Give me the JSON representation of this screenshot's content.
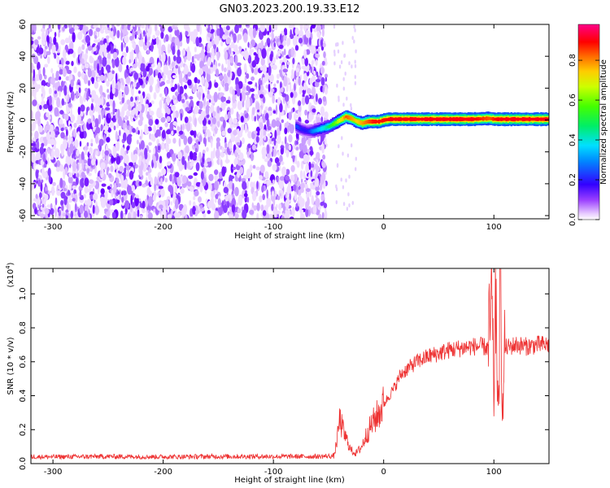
{
  "title": "GN03.2023.200.19.33.E12",
  "chart_data": [
    {
      "type": "heatmap",
      "xlabel": "Height of straight line (km)",
      "ylabel": "Frequency (Hz)",
      "xlim": [
        -320,
        150
      ],
      "ylim": [
        -62,
        60
      ],
      "x_ticks": [
        -300,
        -200,
        -100,
        0,
        100
      ],
      "y_ticks": [
        -60,
        -40,
        -20,
        0,
        20,
        40,
        60
      ],
      "colorbar": {
        "label": "Normalized spectral amplitude",
        "range": [
          0,
          0.98
        ],
        "ticks": [
          "0.0",
          "0.2",
          "0.4",
          "0.6",
          "0.8"
        ],
        "colormap": "rainbow (white-purple-blue-cyan-green-yellow-orange-red-magenta)"
      },
      "noise_region": {
        "x_range": [
          -320,
          -52
        ],
        "freq_range": [
          -62,
          60
        ],
        "amplitude_range": [
          0.0,
          0.18
        ]
      },
      "signal_trace": {
        "x": [
          -80,
          -75,
          -70,
          -65,
          -60,
          -55,
          -50,
          -45,
          -40,
          -35,
          -30,
          -25,
          -20,
          -15,
          -10,
          -5,
          0,
          5,
          10,
          20,
          40,
          60,
          80,
          95,
          100,
          105,
          120,
          150
        ],
        "freq": [
          -4,
          -6,
          -7,
          -7,
          -6,
          -5,
          -4,
          -2,
          0,
          2,
          1,
          -1,
          -2,
          -1,
          -1,
          -1,
          0,
          0.5,
          0.5,
          0.5,
          0.5,
          0.5,
          0.5,
          1,
          0.5,
          0.5,
          0.5,
          0.5
        ],
        "amplitude": [
          0.25,
          0.2,
          0.2,
          0.3,
          0.35,
          0.4,
          0.5,
          0.6,
          0.7,
          0.85,
          0.8,
          0.75,
          0.8,
          0.85,
          0.9,
          0.9,
          0.9,
          0.92,
          0.92,
          0.92,
          0.92,
          0.92,
          0.92,
          0.85,
          0.9,
          0.92,
          0.92,
          0.92
        ]
      }
    },
    {
      "type": "line",
      "xlabel": "Height of straight line (km)",
      "ylabel": "SNR (10 * v/v)",
      "y_scale_note": "(x10",
      "y_scale_exp": "4",
      "xlim": [
        -320,
        150
      ],
      "ylim": [
        0,
        11500
      ],
      "x_ticks": [
        -300,
        -200,
        -100,
        0,
        100
      ],
      "y_ticks": [
        0,
        2000,
        4000,
        6000,
        8000,
        10000
      ],
      "y_tick_labels": [
        "0.0",
        "0.2",
        "0.4",
        "0.6",
        "0.8",
        "1.0"
      ],
      "color": "#ee3333",
      "series": [
        {
          "x": [
            -320,
            -300,
            -250,
            -200,
            -150,
            -100,
            -60,
            -45,
            -42,
            -40,
            -38,
            -35,
            -32,
            -30,
            -25,
            -20,
            -15,
            -10,
            -5,
            0,
            5,
            10,
            15,
            20,
            30,
            40,
            50,
            60,
            70,
            80,
            90,
            95,
            98,
            100,
            102,
            104,
            106,
            108,
            110,
            120,
            130,
            140,
            150
          ],
          "y": [
            400,
            400,
            420,
            400,
            420,
            420,
            420,
            450,
            1500,
            2600,
            2200,
            1600,
            1200,
            800,
            600,
            1000,
            1800,
            2400,
            2900,
            3500,
            4000,
            4500,
            5200,
            5500,
            6000,
            6300,
            6500,
            6700,
            6800,
            6900,
            6900,
            6800,
            9500,
            4000,
            10300,
            2000,
            11200,
            3000,
            6800,
            7000,
            6900,
            7000,
            7000
          ]
        }
      ]
    }
  ]
}
